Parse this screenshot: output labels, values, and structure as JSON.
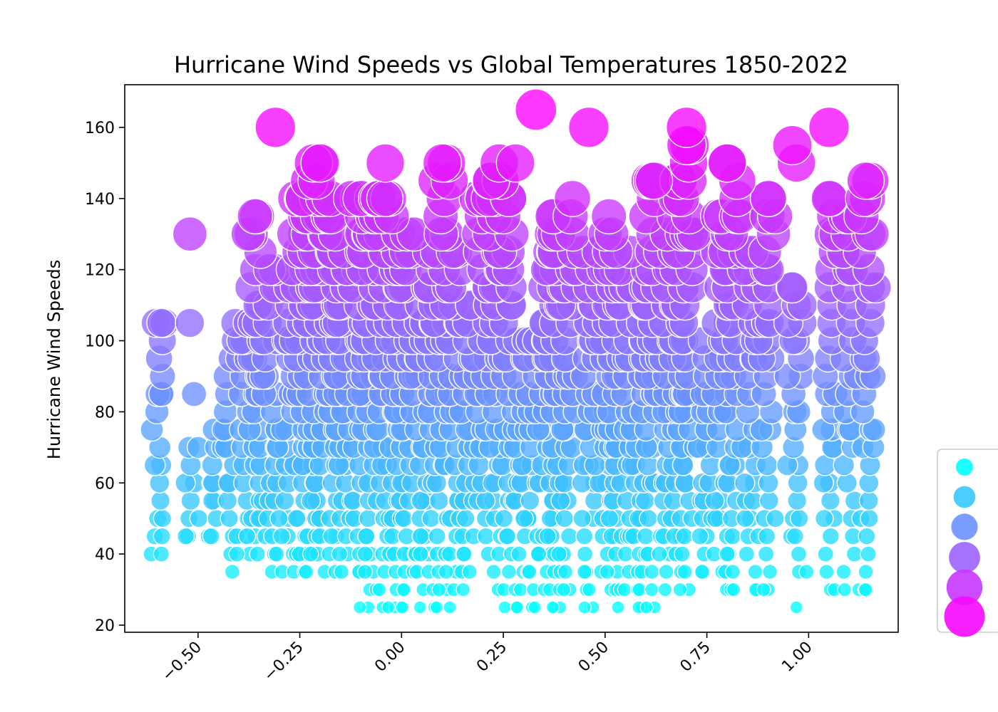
{
  "chart_data": {
    "type": "scatter",
    "title": "Hurricane Wind Speeds vs Global Temperatures 1850-2022",
    "xlabel": "",
    "ylabel": "Hurricane Wind Speeds",
    "xlim": [
      -0.68,
      1.22
    ],
    "ylim": [
      18,
      172
    ],
    "xticks": [
      -0.5,
      -0.25,
      0.0,
      0.25,
      0.5,
      0.75,
      1.0
    ],
    "xtick_labels": [
      "−0.50",
      "−0.25",
      "0.00",
      "0.25",
      "0.50",
      "0.75",
      "1.00"
    ],
    "yticks": [
      20,
      40,
      60,
      80,
      100,
      120,
      140,
      160
    ],
    "ytick_labels": [
      "20",
      "40",
      "60",
      "80",
      "100",
      "120",
      "140",
      "160"
    ],
    "grid": false,
    "legend": "right (clipped)",
    "colormap": "cool",
    "size_by": "wind speed",
    "color_by": "wind speed",
    "point_colors": {
      "low": "#00ffff",
      "high": "#ff00ff"
    },
    "notable_points": [
      {
        "x": 0.33,
        "y": 165
      },
      {
        "x": -0.31,
        "y": 160
      },
      {
        "x": 0.46,
        "y": 160
      },
      {
        "x": 0.7,
        "y": 160
      },
      {
        "x": 1.05,
        "y": 160
      },
      {
        "x": 0.96,
        "y": 155
      },
      {
        "x": 0.7,
        "y": 155
      },
      {
        "x": -0.2,
        "y": 150
      },
      {
        "x": -0.04,
        "y": 150
      },
      {
        "x": 0.1,
        "y": 150
      },
      {
        "x": 0.24,
        "y": 150
      },
      {
        "x": 0.28,
        "y": 150
      },
      {
        "x": 0.8,
        "y": 150
      },
      {
        "x": 0.97,
        "y": 150
      },
      {
        "x": 0.62,
        "y": 145
      },
      {
        "x": 0.22,
        "y": 145
      },
      {
        "x": 1.14,
        "y": 145
      },
      {
        "x": -0.52,
        "y": 130
      },
      {
        "x": -0.36,
        "y": 135
      },
      {
        "x": -0.59,
        "y": 105
      },
      {
        "x": -0.52,
        "y": 105
      },
      {
        "x": -0.59,
        "y": 85
      },
      {
        "x": -0.51,
        "y": 85
      },
      {
        "x": -0.59,
        "y": 40
      },
      {
        "x": 0.97,
        "y": 25
      },
      {
        "x": 1.14,
        "y": 30
      }
    ],
    "columns": [
      {
        "x": -0.6,
        "ymin": 40,
        "ymax": 105,
        "step": 5
      },
      {
        "x": -0.52,
        "ymin": 45,
        "ymax": 70,
        "step": 5
      },
      {
        "x": -0.46,
        "ymin": 45,
        "ymax": 75,
        "step": 5
      },
      {
        "x": -0.42,
        "ymin": 35,
        "ymax": 105,
        "step": 5
      },
      {
        "x": -0.38,
        "ymin": 40,
        "ymax": 105,
        "step": 5
      },
      {
        "x": -0.36,
        "ymin": 40,
        "ymax": 135,
        "step": 5
      },
      {
        "x": -0.32,
        "ymin": 35,
        "ymax": 120,
        "step": 5
      },
      {
        "x": -0.28,
        "ymin": 35,
        "ymax": 115,
        "step": 5
      },
      {
        "x": -0.25,
        "ymin": 35,
        "ymax": 140,
        "step": 5
      },
      {
        "x": -0.22,
        "ymin": 35,
        "ymax": 145,
        "step": 5
      },
      {
        "x": -0.2,
        "ymin": 35,
        "ymax": 150,
        "step": 5
      },
      {
        "x": -0.17,
        "ymin": 35,
        "ymax": 135,
        "step": 5
      },
      {
        "x": -0.14,
        "ymin": 35,
        "ymax": 125,
        "step": 5
      },
      {
        "x": -0.11,
        "ymin": 35,
        "ymax": 140,
        "step": 5
      },
      {
        "x": -0.08,
        "ymin": 25,
        "ymax": 140,
        "step": 5
      },
      {
        "x": -0.05,
        "ymin": 25,
        "ymax": 140,
        "step": 5
      },
      {
        "x": -0.02,
        "ymin": 25,
        "ymax": 140,
        "step": 5
      },
      {
        "x": 0.01,
        "ymin": 25,
        "ymax": 130,
        "step": 5
      },
      {
        "x": 0.04,
        "ymin": 25,
        "ymax": 105,
        "step": 5
      },
      {
        "x": 0.07,
        "ymin": 25,
        "ymax": 125,
        "step": 5
      },
      {
        "x": 0.1,
        "ymin": 25,
        "ymax": 150,
        "step": 5
      },
      {
        "x": 0.13,
        "ymin": 25,
        "ymax": 125,
        "step": 5
      },
      {
        "x": 0.16,
        "ymin": 30,
        "ymax": 110,
        "step": 5
      },
      {
        "x": 0.2,
        "ymin": 40,
        "ymax": 140,
        "step": 5
      },
      {
        "x": 0.23,
        "ymin": 30,
        "ymax": 145,
        "step": 5
      },
      {
        "x": 0.26,
        "ymin": 25,
        "ymax": 140,
        "step": 5
      },
      {
        "x": 0.29,
        "ymin": 25,
        "ymax": 100,
        "step": 5
      },
      {
        "x": 0.32,
        "ymin": 25,
        "ymax": 100,
        "step": 5
      },
      {
        "x": 0.36,
        "ymin": 25,
        "ymax": 135,
        "step": 5
      },
      {
        "x": 0.38,
        "ymin": 25,
        "ymax": 130,
        "step": 5
      },
      {
        "x": 0.41,
        "ymin": 30,
        "ymax": 140,
        "step": 5
      },
      {
        "x": 0.46,
        "ymin": 25,
        "ymax": 125,
        "step": 5
      },
      {
        "x": 0.5,
        "ymin": 30,
        "ymax": 130,
        "step": 5
      },
      {
        "x": 0.52,
        "ymin": 25,
        "ymax": 135,
        "step": 5
      },
      {
        "x": 0.55,
        "ymin": 30,
        "ymax": 125,
        "step": 5
      },
      {
        "x": 0.58,
        "ymin": 25,
        "ymax": 115,
        "step": 5
      },
      {
        "x": 0.61,
        "ymin": 25,
        "ymax": 145,
        "step": 5
      },
      {
        "x": 0.65,
        "ymin": 30,
        "ymax": 130,
        "step": 5
      },
      {
        "x": 0.68,
        "ymin": 35,
        "ymax": 145,
        "step": 5
      },
      {
        "x": 0.7,
        "ymin": 30,
        "ymax": 155,
        "step": 5
      },
      {
        "x": 0.75,
        "ymin": 35,
        "ymax": 100,
        "step": 5
      },
      {
        "x": 0.79,
        "ymin": 30,
        "ymax": 135,
        "step": 5
      },
      {
        "x": 0.81,
        "ymin": 30,
        "ymax": 150,
        "step": 5
      },
      {
        "x": 0.86,
        "ymin": 30,
        "ymax": 125,
        "step": 5
      },
      {
        "x": 0.9,
        "ymin": 30,
        "ymax": 140,
        "step": 5
      },
      {
        "x": 0.97,
        "ymin": 35,
        "ymax": 115,
        "step": 5
      },
      {
        "x": 1.05,
        "ymin": 30,
        "ymax": 140,
        "step": 5
      },
      {
        "x": 1.1,
        "ymin": 30,
        "ymax": 135,
        "step": 5
      },
      {
        "x": 1.14,
        "ymin": 30,
        "ymax": 145,
        "step": 5
      }
    ]
  }
}
